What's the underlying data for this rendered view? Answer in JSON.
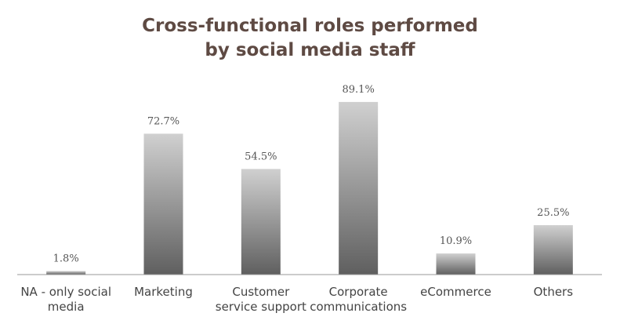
{
  "chart_data": {
    "type": "bar",
    "title_lines": [
      "Cross-functional roles performed",
      "by social media staff"
    ],
    "categories": [
      [
        "NA - only social",
        "media"
      ],
      [
        "Marketing"
      ],
      [
        "Customer",
        "service support"
      ],
      [
        "Corporate",
        "communications"
      ],
      [
        "eCommerce"
      ],
      [
        "Others"
      ]
    ],
    "values": [
      1.8,
      72.7,
      54.5,
      89.1,
      10.9,
      25.5
    ],
    "value_labels": [
      "1.8%",
      "72.7%",
      "54.5%",
      "89.1%",
      "10.9%",
      "25.5%"
    ],
    "ylim": [
      0,
      100
    ],
    "grid": false,
    "legend": "none",
    "bar_color_top": "#d0d0d0",
    "bar_color_bottom": "#5f5f5f",
    "axis_color": "#999999"
  }
}
